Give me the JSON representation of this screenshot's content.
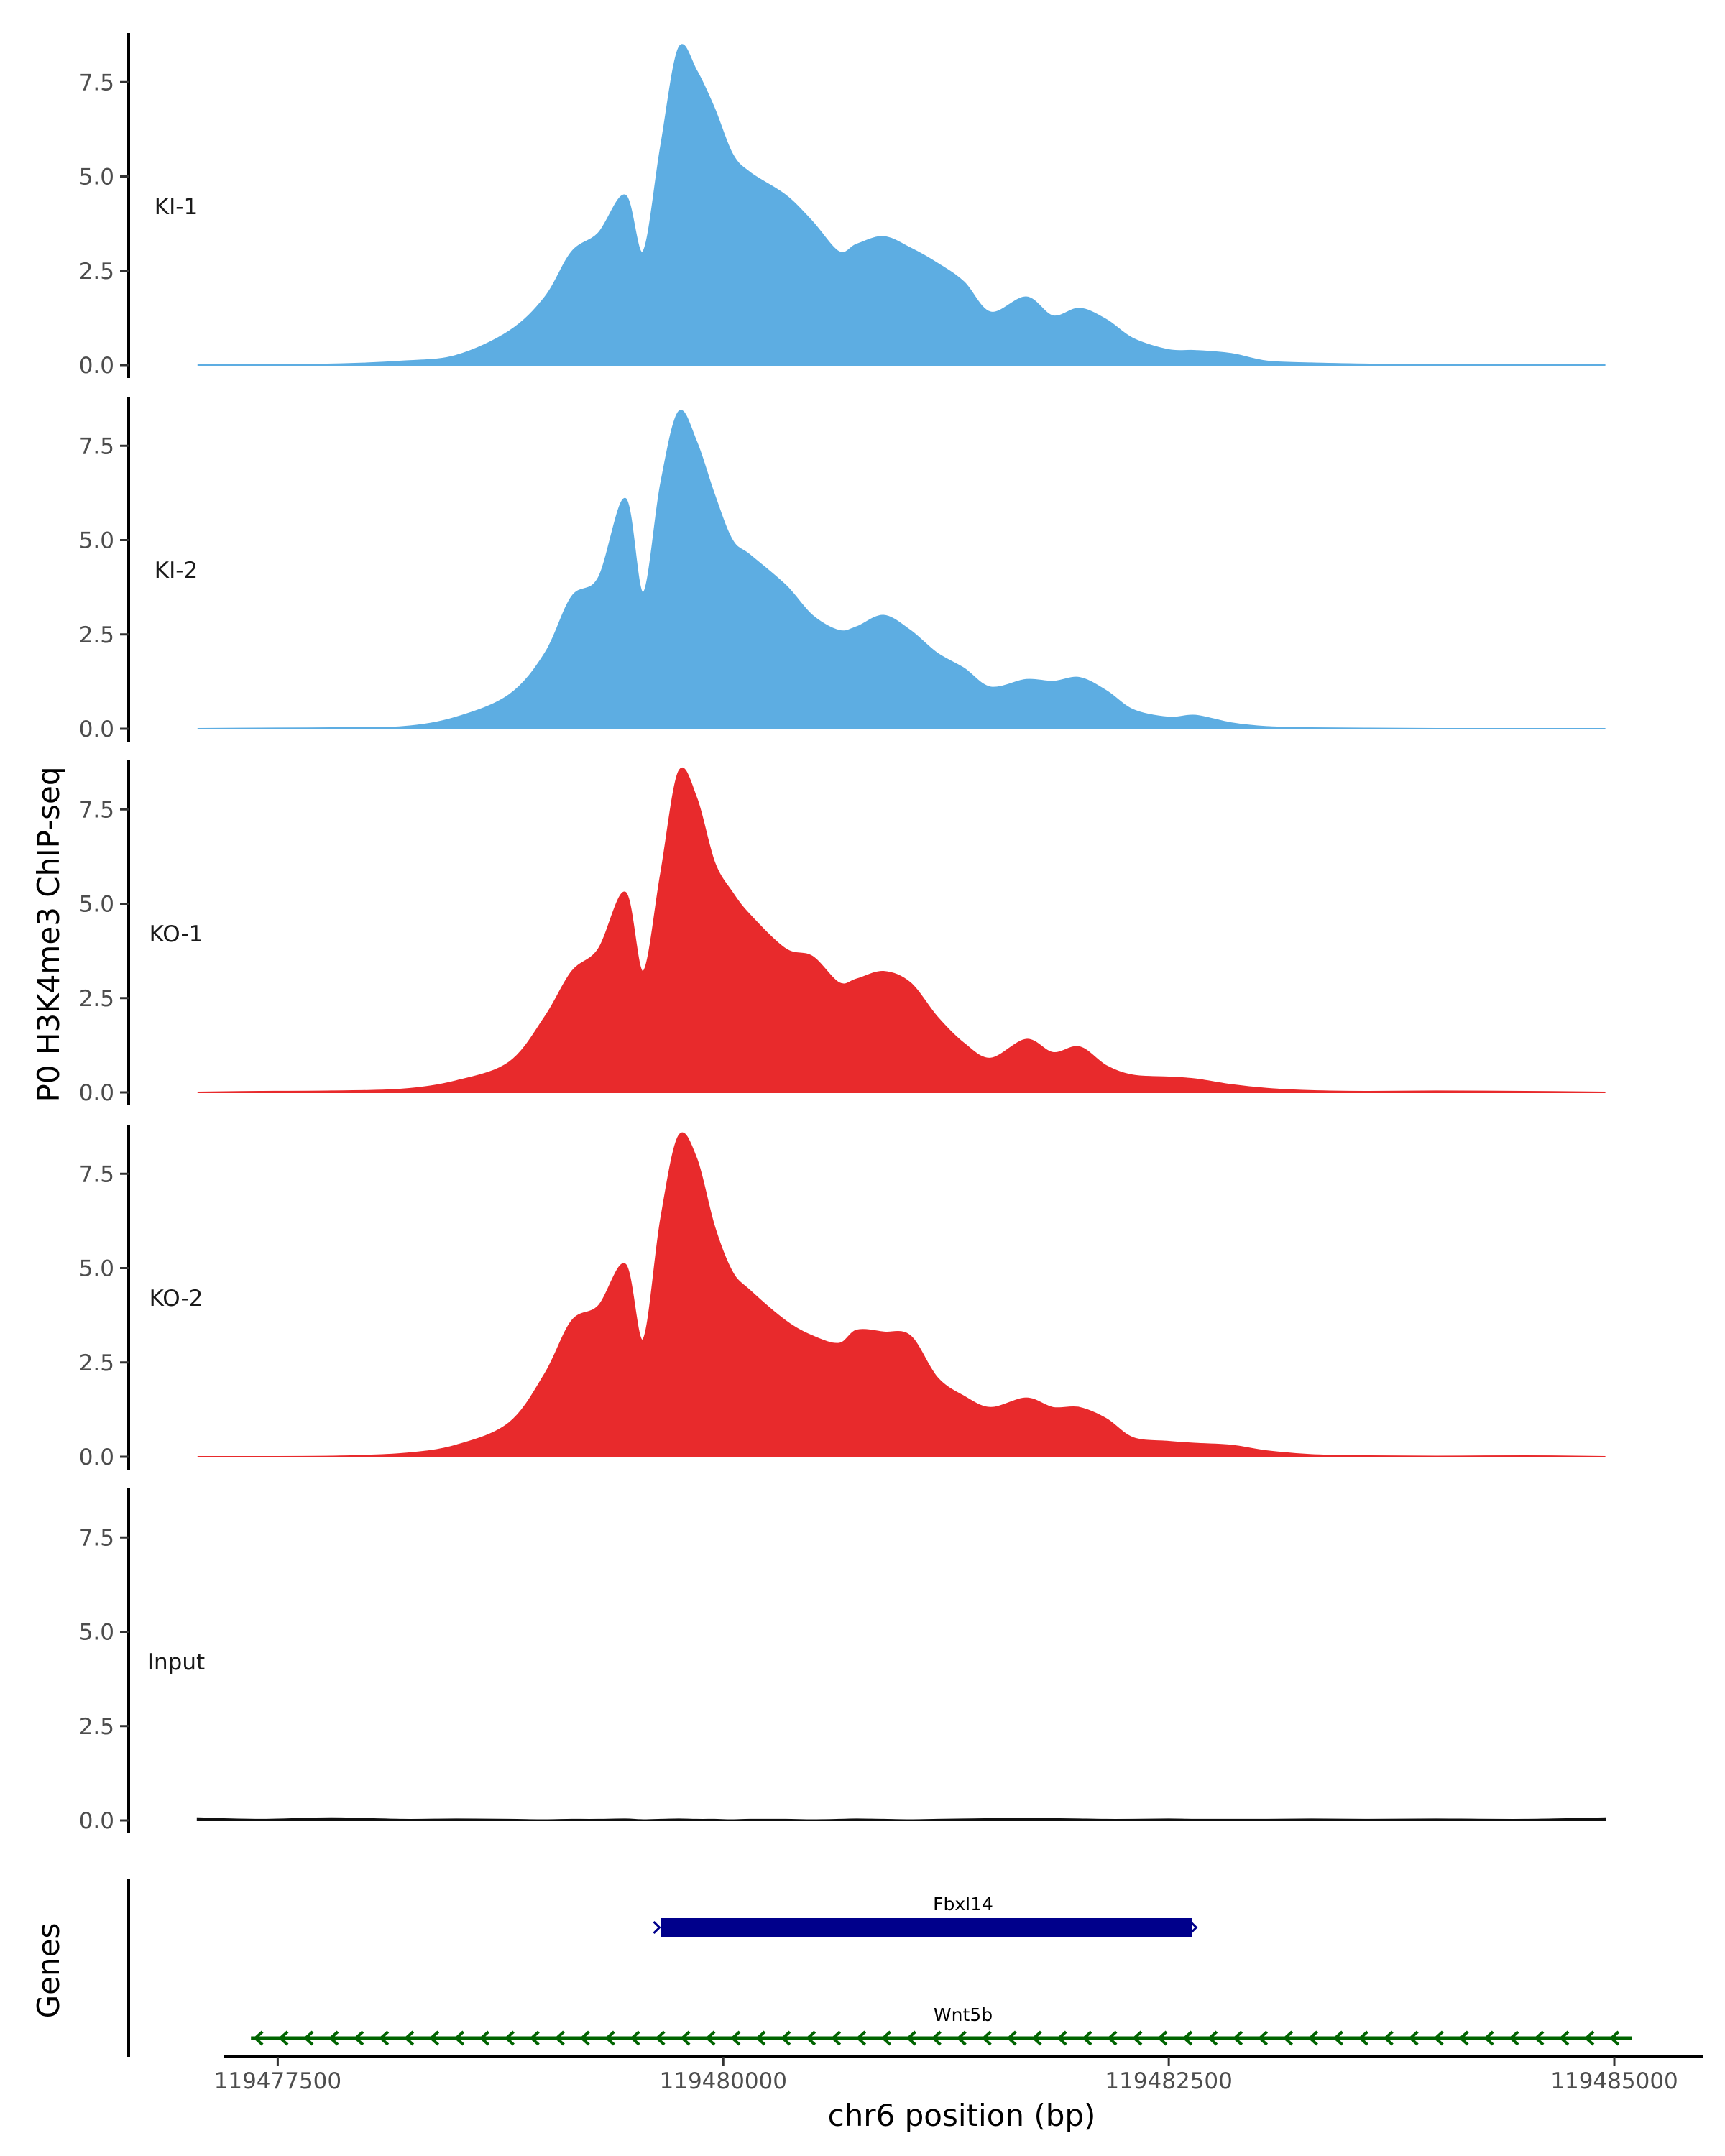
{
  "chart_data": {
    "type": "area",
    "ylabel": "P0 H3K4me3 ChIP-seq",
    "xlabel": "chr6 position (bp)",
    "genes_label": "Genes",
    "x_ticks": [
      119477500,
      119480000,
      119482500,
      119485000
    ],
    "x_tick_labels": [
      "119477500",
      "119480000",
      "119482500",
      "119485000"
    ],
    "xlim": [
      119477200,
      119485500
    ],
    "ylim": [
      0,
      8.8
    ],
    "y_ticks": [
      0,
      2.5,
      5,
      7.5
    ],
    "y_tick_labels": [
      "0.0",
      "2.5",
      "5.0",
      "7.5"
    ],
    "grid": false,
    "x": [
      119477050,
      119477400,
      119477800,
      119478200,
      119478500,
      119478800,
      119479000,
      119479150,
      119479300,
      119479450,
      119479550,
      119479650,
      119479750,
      119479850,
      119479950,
      119480050,
      119480150,
      119480350,
      119480500,
      119480650,
      119480750,
      119480900,
      119481050,
      119481200,
      119481350,
      119481500,
      119481700,
      119481850,
      119482000,
      119482150,
      119482300,
      119482500,
      119482650,
      119482850,
      119483050,
      119483300,
      119483600,
      119484000,
      119484500,
      119484950
    ],
    "series": [
      {
        "name": "KI-1",
        "color": "#5dade2",
        "values": [
          0.0,
          0.01,
          0.02,
          0.1,
          0.25,
          0.9,
          1.8,
          3.0,
          3.5,
          4.5,
          3.0,
          5.8,
          8.4,
          7.8,
          6.8,
          5.6,
          5.1,
          4.5,
          3.8,
          3.0,
          3.2,
          3.4,
          3.1,
          2.7,
          2.2,
          1.4,
          1.8,
          1.3,
          1.5,
          1.2,
          0.7,
          0.4,
          0.38,
          0.3,
          0.1,
          0.05,
          0.02,
          0.0,
          0.01,
          0.0
        ]
      },
      {
        "name": "KI-2",
        "color": "#5dade2",
        "values": [
          0.0,
          0.01,
          0.02,
          0.05,
          0.3,
          0.9,
          2.0,
          3.5,
          4.0,
          6.1,
          3.6,
          6.5,
          8.4,
          7.6,
          6.2,
          5.0,
          4.6,
          3.8,
          3.0,
          2.6,
          2.7,
          3.0,
          2.6,
          2.0,
          1.6,
          1.1,
          1.3,
          1.25,
          1.35,
          1.0,
          0.5,
          0.3,
          0.35,
          0.15,
          0.05,
          0.02,
          0.01,
          0.0,
          0.0,
          0.0
        ]
      },
      {
        "name": "KO-1",
        "color": "#e82a2c",
        "values": [
          0.0,
          0.02,
          0.03,
          0.08,
          0.3,
          0.8,
          2.0,
          3.2,
          3.8,
          5.3,
          3.2,
          5.8,
          8.5,
          7.8,
          6.1,
          5.3,
          4.7,
          3.8,
          3.6,
          2.9,
          3.0,
          3.2,
          2.9,
          2.0,
          1.3,
          0.9,
          1.4,
          1.05,
          1.2,
          0.7,
          0.45,
          0.4,
          0.35,
          0.2,
          0.1,
          0.04,
          0.02,
          0.03,
          0.02,
          0.0
        ]
      },
      {
        "name": "KO-2",
        "color": "#e82a2c",
        "values": [
          0.0,
          0.0,
          0.01,
          0.08,
          0.3,
          0.9,
          2.2,
          3.6,
          4.0,
          5.1,
          3.1,
          6.3,
          8.5,
          7.9,
          6.1,
          4.9,
          4.4,
          3.6,
          3.2,
          3.0,
          3.35,
          3.3,
          3.2,
          2.1,
          1.6,
          1.3,
          1.55,
          1.3,
          1.3,
          1.0,
          0.5,
          0.4,
          0.35,
          0.3,
          0.15,
          0.05,
          0.02,
          0.01,
          0.02,
          0.0
        ]
      },
      {
        "name": "Input",
        "color": "#111111",
        "values": [
          0.06,
          0.02,
          0.06,
          0.02,
          0.03,
          0.02,
          0.01,
          0.02,
          0.02,
          0.03,
          0.01,
          0.02,
          0.03,
          0.02,
          0.02,
          0.01,
          0.02,
          0.02,
          0.01,
          0.02,
          0.03,
          0.02,
          0.01,
          0.02,
          0.03,
          0.04,
          0.05,
          0.04,
          0.03,
          0.02,
          0.02,
          0.03,
          0.02,
          0.02,
          0.02,
          0.03,
          0.02,
          0.03,
          0.02,
          0.06
        ]
      }
    ],
    "genes": [
      {
        "name": "Fbxl14",
        "start": 119479650,
        "end": 119482630,
        "strand": "+",
        "color": "#00008b"
      },
      {
        "name": "Wnt5b",
        "start": 119477350,
        "end": 119485100,
        "strand": "-",
        "color": "#006400"
      }
    ]
  }
}
